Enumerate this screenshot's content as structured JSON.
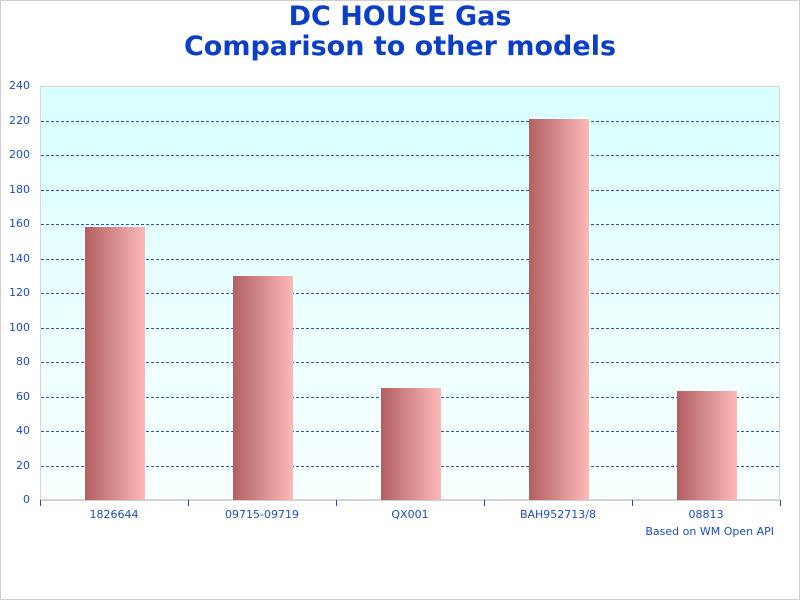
{
  "title": {
    "line1": "DC HOUSE Gas",
    "line2": "Comparison to other models"
  },
  "credit": "Based on WM Open API",
  "colors": {
    "title": "#0b3fc7",
    "axis_text": "#1d4cc1",
    "grid": "#2c55c2",
    "plot_bg_top": "#d9ffff",
    "plot_bg_bottom": "#f9ffff",
    "bar_dark": "#b35f60",
    "bar_light": "#fdb9b8"
  },
  "y_ticks": [
    "0",
    "20",
    "40",
    "60",
    "80",
    "100",
    "120",
    "140",
    "160",
    "180",
    "200",
    "220",
    "240"
  ],
  "x_labels": [
    "1826644",
    "09715-09719",
    "QX001",
    "BAH952713/8",
    "08813"
  ],
  "chart_data": {
    "type": "bar",
    "title": "DC HOUSE Gas Comparison to other models",
    "categories": [
      "1826644",
      "09715-09719",
      "QX001",
      "BAH952713/8",
      "08813"
    ],
    "values": [
      158,
      130,
      65,
      221,
      63
    ],
    "xlabel": "",
    "ylabel": "",
    "ylim": [
      0,
      240
    ],
    "y_tick_step": 20,
    "grid": true,
    "grid_style": "dashed horizontal",
    "legend": null,
    "annotations": [
      "Based on WM Open API"
    ]
  }
}
